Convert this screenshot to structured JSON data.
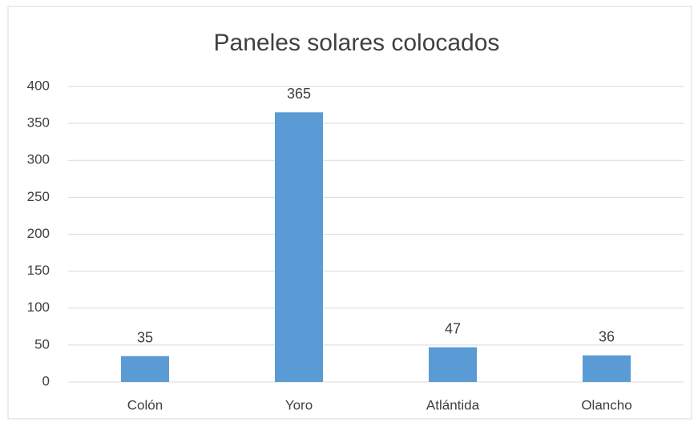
{
  "chart_data": {
    "type": "bar",
    "title": "Paneles solares colocados",
    "categories": [
      "Colón",
      "Yoro",
      "Atlántida",
      "Olancho"
    ],
    "values": [
      35,
      365,
      47,
      36
    ],
    "color": "#5b9bd5",
    "ylim": [
      0,
      400
    ],
    "yticks": [
      0,
      50,
      100,
      150,
      200,
      250,
      300,
      350,
      400
    ],
    "grid": true
  }
}
